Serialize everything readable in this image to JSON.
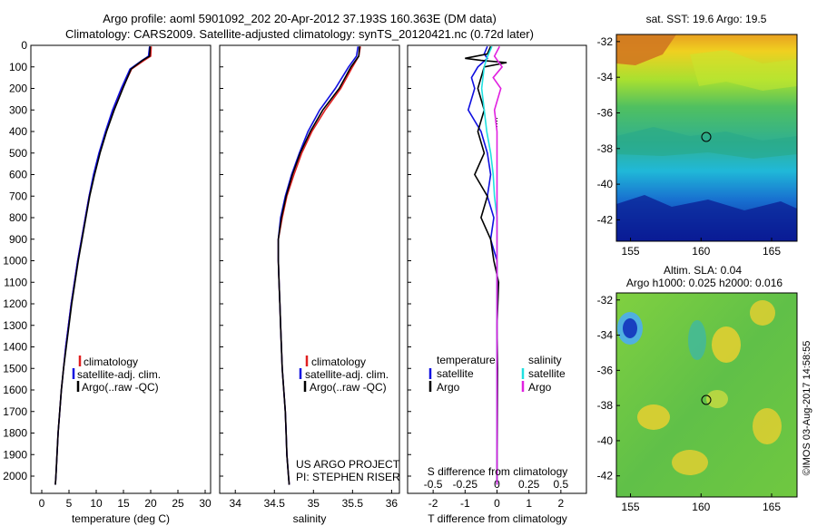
{
  "header": {
    "line1": "Argo profile: aoml 5901092_202 20-Apr-2012 37.193S 160.363E (DM data)",
    "line2": "Climatology: CARS2009. Satellite-adjusted climatology: synTS_20120421.nc (0.72d later)"
  },
  "colors": {
    "clim": "#e02020",
    "sat": "#1010e0",
    "argo": "#000000",
    "sal_sat": "#20e0e0",
    "sal_argo": "#e020e0"
  },
  "chart_data": [
    {
      "id": "temperature",
      "type": "line",
      "xlabel": "temperature (deg C)",
      "ylabel": "",
      "xlim": [
        -2,
        31
      ],
      "ylim": [
        2080,
        0
      ],
      "xticks": [
        0,
        5,
        10,
        15,
        20,
        25,
        30
      ],
      "yticks": [
        0,
        100,
        200,
        300,
        400,
        500,
        600,
        700,
        800,
        900,
        1000,
        1100,
        1200,
        1300,
        1400,
        1500,
        1600,
        1700,
        1800,
        1900,
        2000
      ],
      "legend": [
        "climatology",
        "satellite-adj. clim.",
        "Argo(..raw -QC)"
      ],
      "series": [
        {
          "name": "climatology",
          "color": "clim",
          "points": [
            [
              20.1,
              5
            ],
            [
              20.0,
              50
            ],
            [
              18.8,
              70
            ],
            [
              16.5,
              110
            ],
            [
              14.8,
              200
            ],
            [
              13.2,
              300
            ],
            [
              11.8,
              400
            ],
            [
              10.6,
              500
            ],
            [
              9.6,
              600
            ],
            [
              8.7,
              700
            ],
            [
              8.0,
              800
            ],
            [
              7.3,
              900
            ],
            [
              6.6,
              1000
            ],
            [
              6.0,
              1100
            ],
            [
              5.4,
              1200
            ],
            [
              4.9,
              1300
            ],
            [
              4.4,
              1400
            ],
            [
              4.0,
              1500
            ],
            [
              3.6,
              1600
            ],
            [
              3.3,
              1700
            ],
            [
              3.0,
              1800
            ],
            [
              2.8,
              1900
            ],
            [
              2.6,
              2000
            ],
            [
              2.5,
              2040
            ]
          ]
        },
        {
          "name": "satellite-adj. clim.",
          "color": "sat",
          "points": [
            [
              19.8,
              5
            ],
            [
              19.6,
              50
            ],
            [
              18.4,
              70
            ],
            [
              16.2,
              110
            ],
            [
              14.6,
              200
            ],
            [
              13.0,
              300
            ],
            [
              11.7,
              400
            ],
            [
              10.5,
              500
            ],
            [
              9.5,
              600
            ],
            [
              8.7,
              700
            ],
            [
              8.0,
              800
            ],
            [
              7.3,
              900
            ],
            [
              6.6,
              1000
            ],
            [
              6.0,
              1100
            ],
            [
              5.4,
              1200
            ],
            [
              4.9,
              1300
            ],
            [
              4.4,
              1400
            ],
            [
              4.0,
              1500
            ],
            [
              3.6,
              1600
            ],
            [
              3.3,
              1700
            ],
            [
              3.0,
              1800
            ],
            [
              2.8,
              1900
            ],
            [
              2.6,
              2000
            ],
            [
              2.5,
              2040
            ]
          ]
        },
        {
          "name": "Argo(..raw -QC)",
          "color": "argo",
          "points": [
            [
              19.9,
              5
            ],
            [
              19.8,
              50
            ],
            [
              18.5,
              70
            ],
            [
              16.4,
              110
            ],
            [
              14.9,
              200
            ],
            [
              13.3,
              300
            ],
            [
              11.9,
              400
            ],
            [
              10.7,
              500
            ],
            [
              9.7,
              600
            ],
            [
              8.8,
              700
            ],
            [
              8.1,
              800
            ],
            [
              7.4,
              900
            ],
            [
              6.7,
              1000
            ],
            [
              6.1,
              1100
            ],
            [
              5.5,
              1200
            ],
            [
              5.0,
              1300
            ],
            [
              4.5,
              1400
            ],
            [
              4.0,
              1500
            ],
            [
              3.6,
              1600
            ],
            [
              3.3,
              1700
            ],
            [
              3.0,
              1800
            ],
            [
              2.8,
              1900
            ],
            [
              2.6,
              2000
            ],
            [
              2.5,
              2040
            ]
          ]
        }
      ]
    },
    {
      "id": "salinity",
      "type": "line",
      "xlabel": "salinity",
      "xlim": [
        33.8,
        36.1
      ],
      "ylim": [
        2080,
        0
      ],
      "xticks": [
        34,
        34.5,
        35,
        35.5,
        36
      ],
      "legend": [
        "climatology",
        "satellite-adj. clim.",
        "Argo(..raw -QC)"
      ],
      "annotation": [
        "US ARGO PROJECT",
        "PI: STEPHEN RISER"
      ],
      "series": [
        {
          "name": "climatology",
          "color": "clim",
          "points": [
            [
              35.6,
              5
            ],
            [
              35.58,
              50
            ],
            [
              35.5,
              100
            ],
            [
              35.35,
              200
            ],
            [
              35.15,
              300
            ],
            [
              34.98,
              400
            ],
            [
              34.85,
              500
            ],
            [
              34.75,
              600
            ],
            [
              34.66,
              700
            ],
            [
              34.6,
              800
            ],
            [
              34.55,
              900
            ],
            [
              34.55,
              1000
            ],
            [
              34.56,
              1100
            ],
            [
              34.57,
              1200
            ],
            [
              34.58,
              1300
            ],
            [
              34.59,
              1400
            ],
            [
              34.6,
              1500
            ],
            [
              34.62,
              1600
            ],
            [
              34.64,
              1700
            ],
            [
              34.65,
              1800
            ],
            [
              34.66,
              1900
            ],
            [
              34.68,
              2000
            ],
            [
              34.69,
              2040
            ]
          ]
        },
        {
          "name": "satellite-adj. clim.",
          "color": "sat",
          "points": [
            [
              35.57,
              5
            ],
            [
              35.55,
              50
            ],
            [
              35.45,
              100
            ],
            [
              35.28,
              200
            ],
            [
              35.08,
              300
            ],
            [
              34.93,
              400
            ],
            [
              34.82,
              500
            ],
            [
              34.72,
              600
            ],
            [
              34.64,
              700
            ],
            [
              34.58,
              800
            ],
            [
              34.55,
              900
            ],
            [
              34.55,
              1000
            ],
            [
              34.56,
              1100
            ],
            [
              34.57,
              1200
            ],
            [
              34.58,
              1300
            ],
            [
              34.59,
              1400
            ],
            [
              34.6,
              1500
            ],
            [
              34.62,
              1600
            ],
            [
              34.64,
              1700
            ],
            [
              34.65,
              1800
            ],
            [
              34.66,
              1900
            ],
            [
              34.68,
              2000
            ],
            [
              34.69,
              2040
            ]
          ]
        },
        {
          "name": "Argo(..raw -QC)",
          "color": "argo",
          "points": [
            [
              35.59,
              5
            ],
            [
              35.58,
              50
            ],
            [
              35.48,
              100
            ],
            [
              35.33,
              200
            ],
            [
              35.12,
              300
            ],
            [
              34.96,
              400
            ],
            [
              34.83,
              500
            ],
            [
              34.73,
              600
            ],
            [
              34.65,
              700
            ],
            [
              34.59,
              800
            ],
            [
              34.55,
              900
            ],
            [
              34.55,
              1000
            ],
            [
              34.56,
              1100
            ],
            [
              34.57,
              1200
            ],
            [
              34.58,
              1300
            ],
            [
              34.59,
              1400
            ],
            [
              34.6,
              1500
            ],
            [
              34.62,
              1600
            ],
            [
              34.64,
              1700
            ],
            [
              34.65,
              1800
            ],
            [
              34.66,
              1900
            ],
            [
              34.68,
              2000
            ],
            [
              34.69,
              2040
            ]
          ]
        }
      ]
    },
    {
      "id": "difference",
      "type": "line",
      "xlabel": "T difference from climatology",
      "xlabel2": "S difference from climatology",
      "xlim": [
        -2.8,
        2.8
      ],
      "ylim": [
        2080,
        0
      ],
      "xticks": [
        -2,
        -1,
        0,
        1,
        2
      ],
      "xticks2": [
        -0.5,
        -0.25,
        0,
        0.25,
        0.5
      ],
      "legend_headers": [
        "temperature",
        "salinity"
      ],
      "legend": [
        {
          "group": "temperature",
          "name": "satellite",
          "color": "sat"
        },
        {
          "group": "temperature",
          "name": "Argo",
          "color": "argo"
        },
        {
          "group": "salinity",
          "name": "satellite",
          "color": "sal_sat"
        },
        {
          "group": "salinity",
          "name": "Argo",
          "color": "sal_argo"
        }
      ],
      "series": [
        {
          "group": "temperature",
          "name": "satellite",
          "color": "sat",
          "points": [
            [
              -0.3,
              5
            ],
            [
              -0.4,
              40
            ],
            [
              -0.3,
              60
            ],
            [
              -0.6,
              100
            ],
            [
              -0.8,
              150
            ],
            [
              -0.7,
              200
            ],
            [
              -0.9,
              300
            ],
            [
              -0.5,
              400
            ],
            [
              -0.3,
              500
            ],
            [
              -0.2,
              600
            ],
            [
              -0.3,
              700
            ],
            [
              -0.1,
              800
            ],
            [
              -0.2,
              900
            ],
            [
              0.0,
              1000
            ],
            [
              0.0,
              1200
            ],
            [
              0.0,
              1500
            ],
            [
              0.0,
              2040
            ]
          ]
        },
        {
          "group": "temperature",
          "name": "Argo",
          "color": "argo",
          "points": [
            [
              -0.2,
              5
            ],
            [
              -0.3,
              40
            ],
            [
              -1.0,
              60
            ],
            [
              -0.5,
              70
            ],
            [
              0.3,
              80
            ],
            [
              -0.4,
              100
            ],
            [
              -0.6,
              200
            ],
            [
              -0.4,
              300
            ],
            [
              -0.6,
              400
            ],
            [
              -0.4,
              500
            ],
            [
              -0.7,
              600
            ],
            [
              -0.3,
              700
            ],
            [
              -0.5,
              800
            ],
            [
              -0.2,
              900
            ],
            [
              -0.1,
              1000
            ],
            [
              0.05,
              1100
            ],
            [
              0.0,
              1300
            ],
            [
              0.02,
              1500
            ],
            [
              0.0,
              2040
            ]
          ]
        },
        {
          "group": "salinity",
          "name": "satellite",
          "color": "sal_sat",
          "points": [
            [
              -0.04,
              5
            ],
            [
              -0.08,
              60
            ],
            [
              -0.1,
              100
            ],
            [
              -0.12,
              200
            ],
            [
              -0.1,
              300
            ],
            [
              -0.08,
              400
            ],
            [
              -0.05,
              500
            ],
            [
              -0.03,
              600
            ],
            [
              -0.02,
              700
            ],
            [
              0.0,
              800
            ],
            [
              0.0,
              2040
            ]
          ]
        },
        {
          "group": "salinity",
          "name": "Argo",
          "color": "sal_argo",
          "points": [
            [
              0.02,
              5
            ],
            [
              -0.02,
              50
            ],
            [
              0.04,
              100
            ],
            [
              -0.03,
              150
            ],
            [
              0.03,
              200
            ],
            [
              -0.02,
              300
            ],
            [
              0.0,
              400
            ],
            [
              0.0,
              2040
            ]
          ]
        }
      ]
    },
    {
      "id": "sst-map",
      "type": "heatmap",
      "title": "sat. SST: 19.6  Argo: 19.5",
      "xlim": [
        154,
        166.8
      ],
      "ylim": [
        -43.2,
        -31.6
      ],
      "xticks": [
        155,
        160,
        165
      ],
      "yticks": [
        -32,
        -34,
        -36,
        -38,
        -40,
        -42
      ],
      "marker": [
        160.363,
        -37.193
      ]
    },
    {
      "id": "sla-map",
      "type": "heatmap",
      "title": [
        "Altim. SLA: 0.04",
        "Argo h1000: 0.025 h2000: 0.016"
      ],
      "xlim": [
        154,
        166.8
      ],
      "ylim": [
        -43.2,
        -31.6
      ],
      "xticks": [
        155,
        160,
        165
      ],
      "yticks": [
        -32,
        -34,
        -36,
        -38,
        -40,
        -42
      ],
      "marker": [
        160.363,
        -37.193
      ]
    }
  ],
  "footer": {
    "stamp": "©IMOS 03-Aug-2017 14:58:55"
  }
}
